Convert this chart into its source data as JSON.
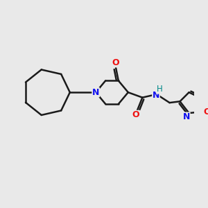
{
  "background_color": "#e9e9e9",
  "bond_color": "#1a1a1a",
  "N_color": "#1010ee",
  "O_color": "#ee1010",
  "H_color": "#008888",
  "line_width": 1.8,
  "figsize": [
    3.0,
    3.0
  ],
  "dpi": 100,
  "xlim": [
    0,
    300
  ],
  "ylim": [
    0,
    300
  ]
}
